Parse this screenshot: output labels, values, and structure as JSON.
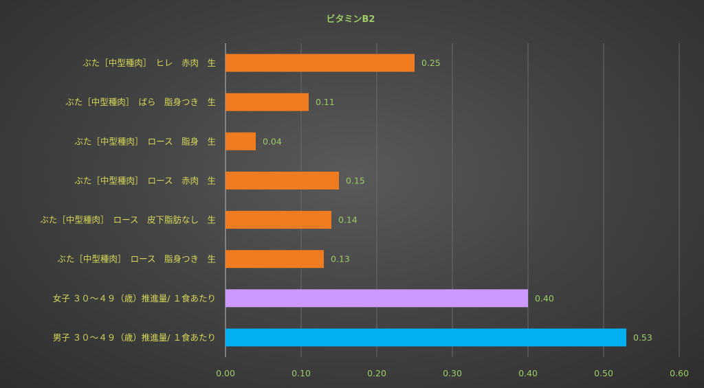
{
  "chart_data": {
    "type": "bar",
    "orientation": "horizontal",
    "title": "ビタミンB2",
    "categories": [
      "ぶた［中型種肉］　ヒレ　赤肉　生",
      "ぶた［中型種肉］　ばら　脂身つき　生",
      "ぶた［中型種肉］　ロース　脂身　生",
      "ぶた［中型種肉］　ロース　赤肉　生",
      "ぶた［中型種肉］　ロース　皮下脂肪なし　生",
      "ぶた［中型種肉］　ロース　脂身つき　生",
      "女子 ３０～４９（歳）推進量/ １食あたり",
      "男子 ３０～４９（歳）推進量/ １食あたり"
    ],
    "values": [
      0.25,
      0.11,
      0.04,
      0.15,
      0.14,
      0.13,
      0.4,
      0.53
    ],
    "value_labels": [
      "0.25",
      "0.11",
      "0.04",
      "0.15",
      "0.14",
      "0.13",
      "0.40",
      "0.53"
    ],
    "bar_colors": [
      "#f07c22",
      "#f07c22",
      "#f07c22",
      "#f07c22",
      "#f07c22",
      "#f07c22",
      "#cc99ff",
      "#00b0f0"
    ],
    "xlim": [
      0,
      0.6
    ],
    "xticks": [
      "0.00",
      "0.10",
      "0.20",
      "0.30",
      "0.40",
      "0.50",
      "0.60"
    ],
    "grid": true,
    "legend": "none"
  }
}
